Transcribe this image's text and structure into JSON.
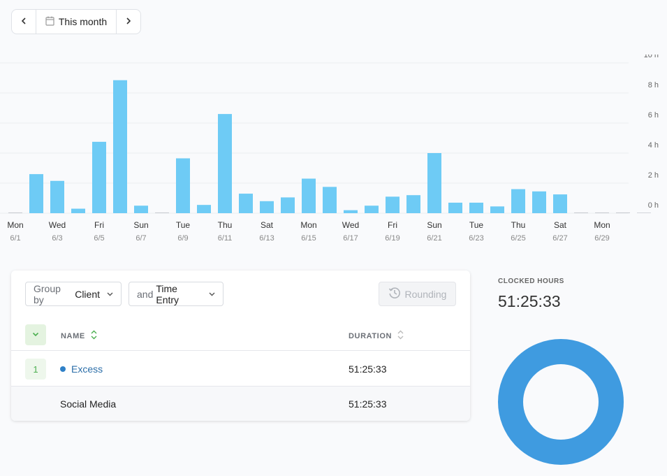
{
  "date_nav": {
    "label": "This month",
    "prev_icon": "chevron-left-icon",
    "next_icon": "chevron-right-icon",
    "calendar_icon": "calendar-icon"
  },
  "colors": {
    "bar": "#6ecbf5",
    "accent_green": "#4caf50",
    "donut": "#3f9be0",
    "link": "#2b6ea8"
  },
  "chart_data": {
    "type": "bar",
    "y_ticks": [
      "0 h",
      "2 h",
      "4 h",
      "6 h",
      "8 h",
      "10 h"
    ],
    "ylim": [
      0,
      10
    ],
    "x_day_labels": [
      "Mon",
      "",
      "Wed",
      "",
      "Fri",
      "",
      "Sun",
      "",
      "Tue",
      "",
      "Thu",
      "",
      "Sat",
      "",
      "Mon",
      "",
      "Wed",
      "",
      "Fri",
      "",
      "Sun",
      "",
      "Tue",
      "",
      "Thu",
      "",
      "Sat",
      "",
      "Mon",
      "",
      ""
    ],
    "x_date_labels": [
      "6/1",
      "",
      "6/3",
      "",
      "6/5",
      "",
      "6/7",
      "",
      "6/9",
      "",
      "6/11",
      "",
      "6/13",
      "",
      "6/15",
      "",
      "6/17",
      "",
      "6/19",
      "",
      "6/21",
      "",
      "6/23",
      "",
      "6/25",
      "",
      "6/27",
      "",
      "6/29",
      "",
      ""
    ],
    "values": [
      0.05,
      2.6,
      2.15,
      0.3,
      4.75,
      8.85,
      0.5,
      0.05,
      3.65,
      0.55,
      6.6,
      1.3,
      0.8,
      1.05,
      2.3,
      1.75,
      0.2,
      0.5,
      1.1,
      1.2,
      4.0,
      0.7,
      0.7,
      0.45,
      1.6,
      1.45,
      1.25,
      0.05,
      0.05,
      0.05,
      0
    ]
  },
  "table": {
    "group_by_prefix": "Group by",
    "group_by_value": "Client",
    "and_prefix": "and",
    "and_value": "Time Entry",
    "rounding_label": "Rounding",
    "col_name": "NAME",
    "col_duration": "DURATION",
    "rows": [
      {
        "count": "1",
        "name": "Excess",
        "duration": "51:25:33"
      },
      {
        "name": "Social Media",
        "duration": "51:25:33"
      }
    ]
  },
  "summary": {
    "label": "CLOCKED HOURS",
    "value": "51:25:33"
  }
}
